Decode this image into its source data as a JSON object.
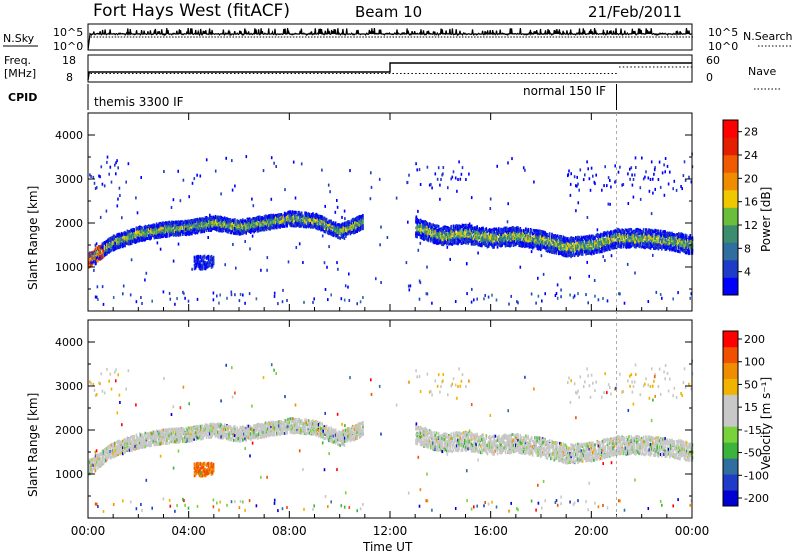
{
  "header": {
    "title": "Fort Hays West (fitACF)",
    "beam": "Beam 10",
    "date": "21/Feb/2011"
  },
  "top_panel": {
    "nsky_label": "N.Sky",
    "nsearch_label": "N.Search",
    "left_ticks": [
      "10^5",
      "10^0"
    ],
    "right_ticks": [
      "10^5",
      "10^0"
    ],
    "freq_label": "Freq.",
    "freq_unit": "[MHz]",
    "freq_ticks": [
      "18",
      "8"
    ],
    "nave_label": "Nave",
    "nave_ticks": [
      "60",
      "0"
    ],
    "cpid_label": "CPID",
    "cpid_segments": [
      {
        "label": "themis 3300 IF",
        "start_hour": 0
      },
      {
        "label": "normal 150 IF",
        "start_hour": 21
      }
    ]
  },
  "colors": {
    "power_scale": [
      "#0000ff",
      "#1e3cc8",
      "#2f6e9e",
      "#3c8c6e",
      "#6abe3c",
      "#f0c800",
      "#f08c00",
      "#f05a00",
      "#e61e00",
      "#ff0000"
    ],
    "velocity_scale": [
      "#0000d2",
      "#1e3cc8",
      "#2f6e9e",
      "#3cb43c",
      "#78d23c",
      "#c8c8c8",
      "#c8c8c8",
      "#f0b400",
      "#f08c00",
      "#f05000",
      "#ff0000"
    ]
  },
  "chart_data": [
    {
      "type": "heatmap",
      "panel": "power",
      "ylabel": "Slant Range [km]",
      "ylim": [
        0,
        4500
      ],
      "yticks": [
        1000,
        2000,
        3000,
        4000
      ],
      "xlim": [
        0,
        24
      ],
      "colorbar": {
        "label": "Power [dB]",
        "ticks": [
          "4",
          "8",
          "12",
          "16",
          "20",
          "24",
          "28"
        ],
        "range": [
          0,
          30
        ]
      },
      "echo_band": {
        "hours": [
          0,
          1,
          2,
          3,
          4,
          5,
          6,
          7,
          8,
          9,
          10,
          11,
          12,
          13,
          14,
          15,
          16,
          17,
          18,
          19,
          20,
          21,
          22,
          23,
          24
        ],
        "range_km": [
          1150,
          1550,
          1750,
          1850,
          1900,
          2000,
          1900,
          2000,
          2100,
          2050,
          1800,
          2050,
          null,
          1900,
          1700,
          1750,
          1650,
          1700,
          1600,
          1450,
          1500,
          1650,
          1650,
          1600,
          1500
        ]
      }
    },
    {
      "type": "heatmap",
      "panel": "velocity",
      "ylabel": "Slant Range [km]",
      "ylim": [
        0,
        4500
      ],
      "yticks": [
        1000,
        2000,
        3000,
        4000
      ],
      "xlim": [
        0,
        24
      ],
      "xlabel": "Time UT",
      "xticks": [
        "00:00",
        "04:00",
        "08:00",
        "12:00",
        "16:00",
        "20:00",
        "00:00"
      ],
      "colorbar": {
        "label": "Velocity [m s⁻¹]",
        "ticks": [
          "200",
          "100",
          "50",
          "15",
          "-15",
          "-50",
          "-100",
          "-200"
        ]
      }
    }
  ]
}
